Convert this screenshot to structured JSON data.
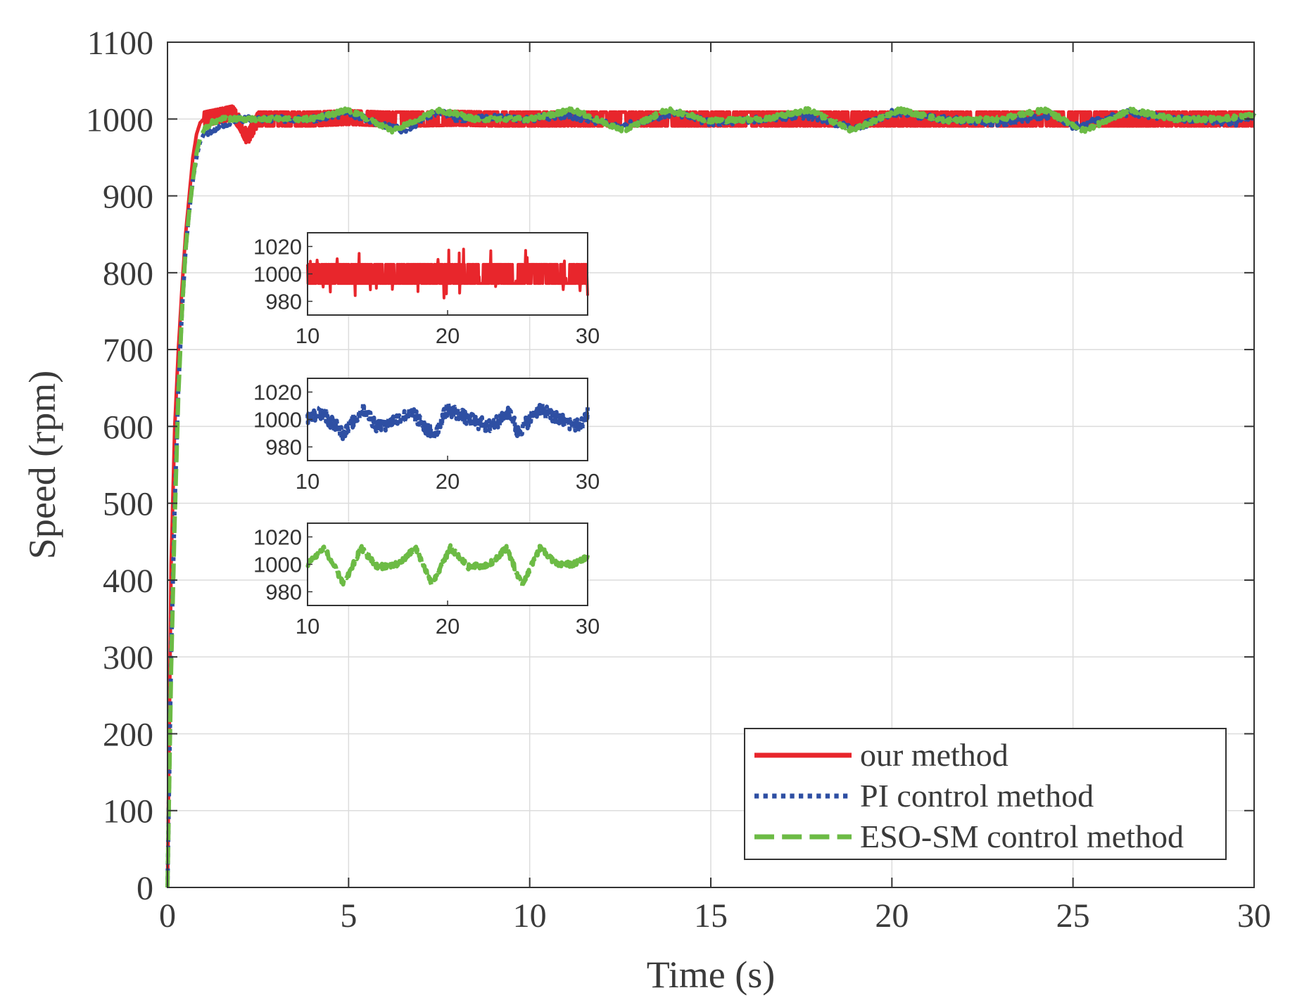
{
  "chart_data": {
    "type": "line",
    "title": "",
    "xlabel": "Time (s)",
    "ylabel": "Speed (rpm)",
    "xlim": [
      0,
      30
    ],
    "ylim": [
      0,
      1100
    ],
    "xticks": [
      0,
      5,
      10,
      15,
      20,
      25,
      30
    ],
    "yticks": [
      0,
      100,
      200,
      300,
      400,
      500,
      600,
      700,
      800,
      900,
      1000,
      1100
    ],
    "grid": true,
    "legend_position": "bottom-right",
    "series": [
      {
        "name": "our method",
        "color": "#e8262c",
        "style": "solid",
        "x": [
          0,
          0.1,
          0.2,
          0.3,
          0.4,
          0.5,
          0.6,
          0.7,
          0.8,
          0.9,
          1.0,
          1.2,
          1.5,
          1.8,
          2.0,
          2.2,
          2.5,
          3,
          4,
          5,
          6,
          7,
          8,
          9,
          10,
          12,
          14,
          16,
          18,
          20,
          22,
          24,
          26,
          28,
          30
        ],
        "y": [
          0,
          420,
          600,
          700,
          780,
          850,
          900,
          950,
          980,
          995,
          1000,
          1002,
          1005,
          1008,
          995,
          975,
          1000,
          1000,
          1000,
          1002,
          1000,
          1000,
          1001,
          1000,
          1000,
          1000,
          1000,
          1000,
          1000,
          1000,
          1000,
          1000,
          1000,
          1000,
          1000
        ],
        "noise_band": 9
      },
      {
        "name": "PI control method",
        "color": "#2e4fa3",
        "style": "dotted",
        "x": [
          0,
          0.1,
          0.2,
          0.3,
          0.4,
          0.5,
          0.6,
          0.7,
          0.8,
          0.9,
          1.0,
          1.2,
          1.5,
          1.8,
          2.0,
          2.5,
          3,
          4,
          5,
          6,
          6.5,
          7.5,
          8,
          9,
          10,
          11,
          12.5,
          14,
          15,
          16.5,
          17.5,
          19,
          20,
          21.5,
          23,
          24.5,
          25,
          26.5,
          28,
          29.5,
          30
        ],
        "y": [
          0,
          300,
          500,
          650,
          750,
          830,
          880,
          920,
          950,
          970,
          980,
          985,
          992,
          998,
          1000,
          1000,
          1000,
          1000,
          1008,
          992,
          985,
          1010,
          1000,
          1002,
          1000,
          1005,
          990,
          1008,
          995,
          1000,
          1005,
          988,
          1008,
          1000,
          995,
          1005,
          990,
          1008,
          1000,
          995,
          1005
        ],
        "noise_band": 4
      },
      {
        "name": "ESO-SM control method",
        "color": "#6cbb45",
        "style": "dashed",
        "x": [
          0,
          0.1,
          0.2,
          0.3,
          0.4,
          0.5,
          0.6,
          0.7,
          0.8,
          0.9,
          1.0,
          1.2,
          1.5,
          1.8,
          2.0,
          2.5,
          3,
          4,
          5,
          6.2,
          7.5,
          8.5,
          10,
          11.2,
          12.6,
          13.8,
          15,
          16.5,
          17.7,
          18.9,
          20.2,
          21.5,
          23,
          24.2,
          25.3,
          26.6,
          27.8,
          29,
          30
        ],
        "y": [
          0,
          280,
          480,
          640,
          750,
          830,
          880,
          920,
          955,
          975,
          985,
          995,
          1000,
          1000,
          1000,
          1000,
          1000,
          1000,
          1012,
          985,
          1012,
          1000,
          1000,
          1012,
          985,
          1012,
          998,
          1000,
          1012,
          985,
          1012,
          998,
          1000,
          1012,
          985,
          1012,
          1000,
          1000,
          1005
        ],
        "noise_band": 3
      }
    ],
    "insets": [
      {
        "series": "our method",
        "xlim": [
          10,
          30
        ],
        "ylim": [
          970,
          1030
        ],
        "xticks": [
          10,
          20,
          30
        ],
        "yticks": [
          980,
          1000,
          1020
        ]
      },
      {
        "series": "PI control method",
        "xlim": [
          10,
          30
        ],
        "ylim": [
          970,
          1030
        ],
        "xticks": [
          10,
          20,
          30
        ],
        "yticks": [
          980,
          1000,
          1020
        ]
      },
      {
        "series": "ESO-SM control method",
        "xlim": [
          10,
          30
        ],
        "ylim": [
          970,
          1030
        ],
        "xticks": [
          10,
          20,
          30
        ],
        "yticks": [
          980,
          1000,
          1020
        ]
      }
    ]
  }
}
